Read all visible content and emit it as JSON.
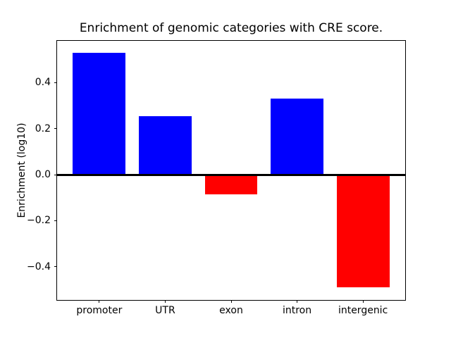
{
  "figure": {
    "background_color": "#ffffff"
  },
  "chart_data": {
    "type": "bar",
    "title": "Enrichment of genomic categories with CRE score.",
    "xlabel": "",
    "ylabel": "Enrichment (log10)",
    "categories": [
      "promoter",
      "UTR",
      "exon",
      "intron",
      "intergenic"
    ],
    "values": [
      0.53,
      0.255,
      -0.085,
      0.33,
      -0.49
    ],
    "bar_colors": [
      "#0000ff",
      "#0000ff",
      "#ff0000",
      "#0000ff",
      "#ff0000"
    ],
    "positive_color": "#0000ff",
    "negative_color": "#ff0000",
    "bar_width": 0.8,
    "ylim": [
      -0.544,
      0.581
    ],
    "xlim": [
      -0.64,
      4.64
    ],
    "yticks": [
      {
        "value": 0.4,
        "label": "0.4"
      },
      {
        "value": 0.2,
        "label": "0.2"
      },
      {
        "value": 0.0,
        "label": "0.0"
      },
      {
        "value": -0.2,
        "label": "−0.2"
      },
      {
        "value": -0.4,
        "label": "−0.4"
      }
    ],
    "zero_line": {
      "value": 0.0,
      "color": "#000000",
      "thickness_px": 3
    },
    "grid": false,
    "legend": "none"
  }
}
